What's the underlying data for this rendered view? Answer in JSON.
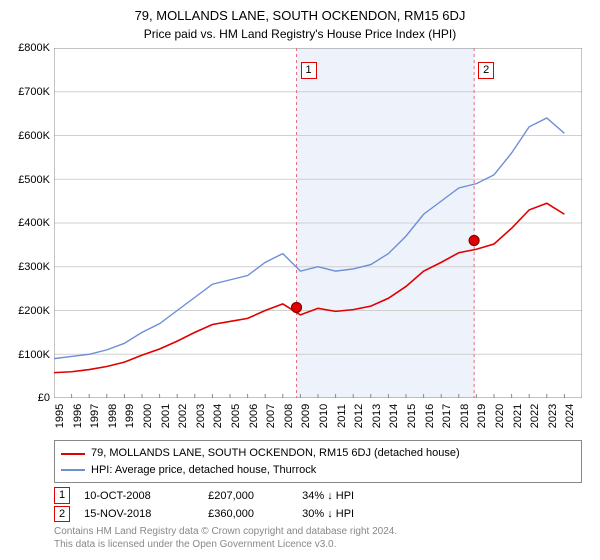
{
  "title": "79, MOLLANDS LANE, SOUTH OCKENDON, RM15 6DJ",
  "subtitle": "Price paid vs. HM Land Registry's House Price Index (HPI)",
  "chart": {
    "type": "line",
    "x_years": [
      1995,
      1996,
      1997,
      1998,
      1999,
      2000,
      2001,
      2002,
      2003,
      2004,
      2005,
      2006,
      2007,
      2008,
      2009,
      2010,
      2011,
      2012,
      2013,
      2014,
      2015,
      2016,
      2017,
      2018,
      2019,
      2020,
      2021,
      2022,
      2023,
      2024
    ],
    "xlim": [
      1995,
      2025
    ],
    "ylim": [
      0,
      800000
    ],
    "ytick_step": 100000,
    "y_tick_labels": [
      "£0",
      "£100K",
      "£200K",
      "£300K",
      "£400K",
      "£500K",
      "£600K",
      "£700K",
      "£800K"
    ],
    "background_color": "#ffffff",
    "grid_color": "#d0d0d0",
    "tick_fontsize": 11,
    "shaded_band": {
      "x_start": 2008.8,
      "x_end": 2018.9,
      "fill": "#eef2fb"
    },
    "series": [
      {
        "name": "hpi",
        "label": "HPI: Average price, detached house, Thurrock",
        "color": "#6c8fd6",
        "line_width": 1.4,
        "values": [
          90000,
          95000,
          100000,
          110000,
          125000,
          150000,
          170000,
          200000,
          230000,
          260000,
          270000,
          280000,
          310000,
          330000,
          290000,
          300000,
          290000,
          295000,
          305000,
          330000,
          370000,
          420000,
          450000,
          480000,
          490000,
          510000,
          560000,
          620000,
          640000,
          605000
        ]
      },
      {
        "name": "property",
        "label": "79, MOLLANDS LANE, SOUTH OCKENDON, RM15 6DJ (detached house)",
        "color": "#e00000",
        "line_width": 1.6,
        "values": [
          58000,
          60000,
          65000,
          72000,
          82000,
          98000,
          112000,
          130000,
          150000,
          168000,
          175000,
          182000,
          200000,
          215000,
          190000,
          205000,
          198000,
          202000,
          210000,
          228000,
          255000,
          290000,
          310000,
          332000,
          340000,
          352000,
          388000,
          430000,
          445000,
          420000
        ]
      }
    ],
    "markers": [
      {
        "id": "1",
        "x": 2008.78,
        "y": 207000,
        "line_color": "#e0707e",
        "box_top": true
      },
      {
        "id": "2",
        "x": 2018.87,
        "y": 360000,
        "line_color": "#e0707e",
        "box_top": true
      }
    ],
    "marker_point_color": "#e00000",
    "marker_point_radius": 5
  },
  "legend": {
    "rows": [
      {
        "color": "#e00000",
        "label": "79, MOLLANDS LANE, SOUTH OCKENDON, RM15 6DJ (detached house)"
      },
      {
        "color": "#6c8fd6",
        "label": "HPI: Average price, detached house, Thurrock"
      }
    ]
  },
  "notes": [
    {
      "marker": "1",
      "date": "10-OCT-2008",
      "price": "£207,000",
      "delta": "34% ↓ HPI"
    },
    {
      "marker": "2",
      "date": "15-NOV-2018",
      "price": "£360,000",
      "delta": "30% ↓ HPI"
    }
  ],
  "footer_line1": "Contains HM Land Registry data © Crown copyright and database right 2024.",
  "footer_line2": "This data is licensed under the Open Government Licence v3.0."
}
